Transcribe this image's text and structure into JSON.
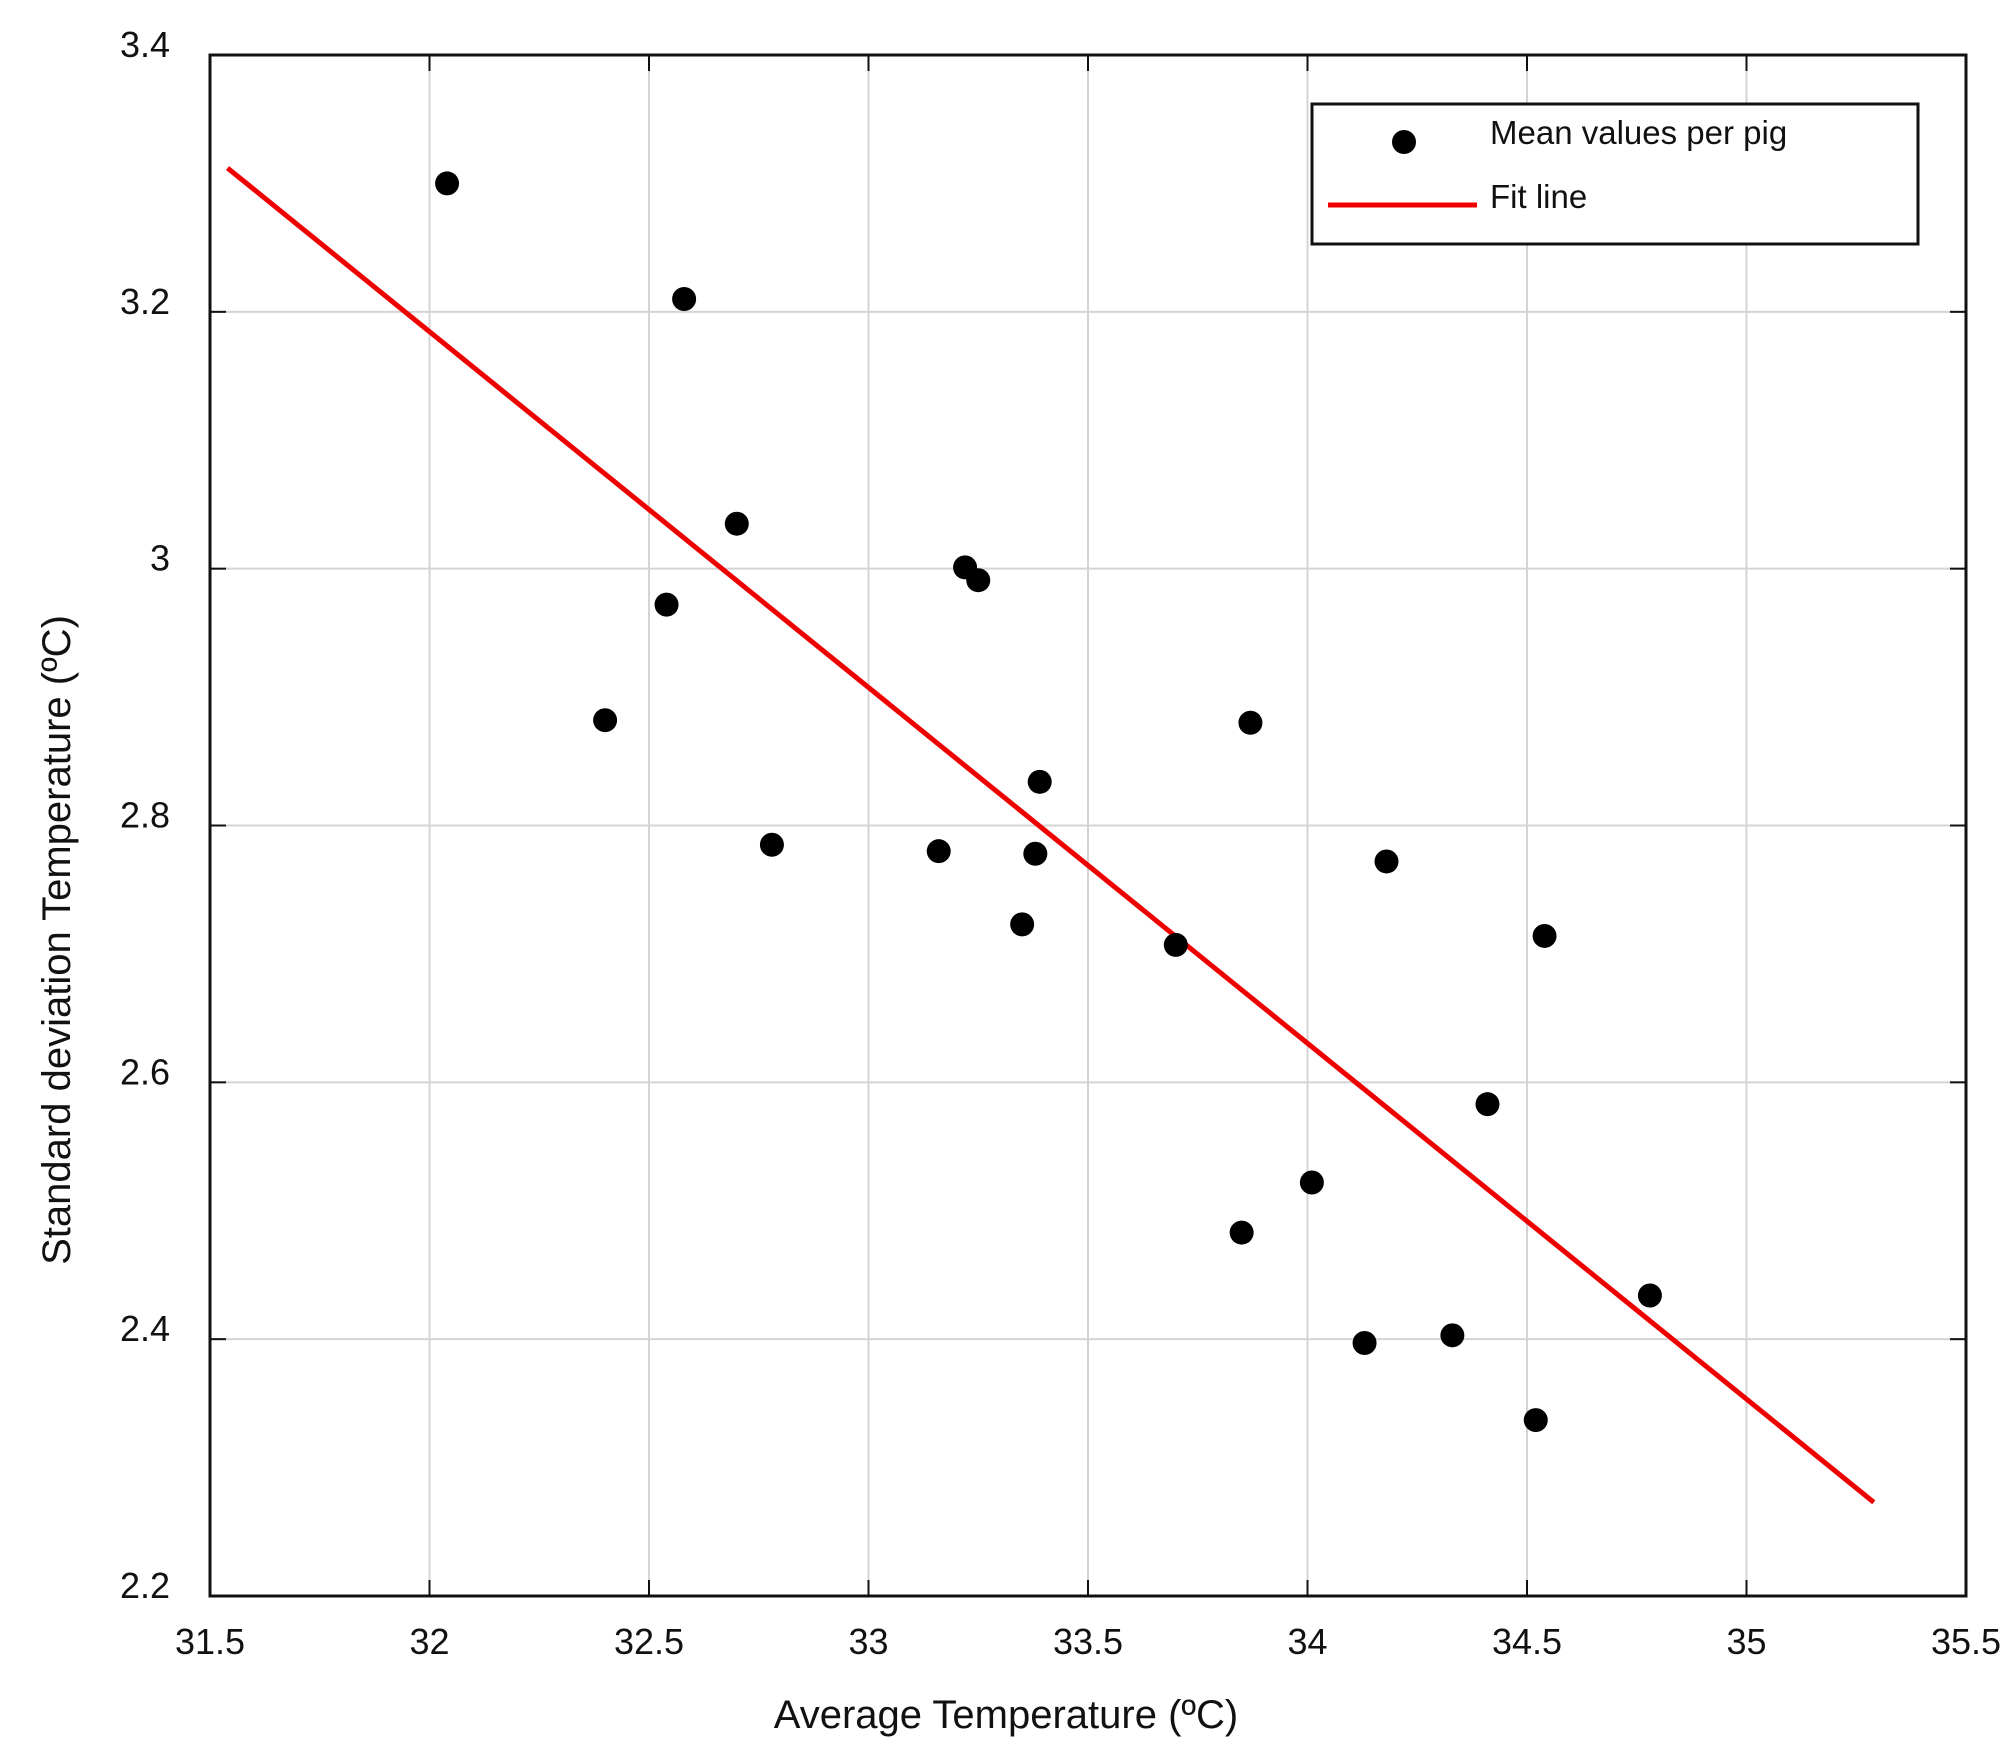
{
  "chart_data": {
    "type": "scatter",
    "title": "",
    "xlabel": "Average Temperature (ºC)",
    "ylabel": "Standard deviation  Temperature (ºC)",
    "xlim": [
      31.5,
      35.5
    ],
    "ylim": [
      2.2,
      3.4
    ],
    "grid": true,
    "legend_position": "top-right",
    "xticks": [
      31.5,
      32,
      32.5,
      33,
      33.5,
      34,
      34.5,
      35,
      35.5
    ],
    "xtick_labels": [
      "31.5",
      "32",
      "32.5",
      "33",
      "33.5",
      "34",
      "34.5",
      "35",
      "35.5"
    ],
    "yticks": [
      2.2,
      2.4,
      2.6,
      2.8,
      3.0,
      3.2,
      3.4
    ],
    "ytick_labels": [
      "2.2",
      "2.4",
      "2.6",
      "2.8",
      "3",
      "3.2",
      "3.4"
    ],
    "series": [
      {
        "name": "Mean values per pig",
        "kind": "scatter",
        "color": "#000000",
        "points": [
          {
            "x": 32.04,
            "y": 3.3
          },
          {
            "x": 32.58,
            "y": 3.21
          },
          {
            "x": 32.7,
            "y": 3.035
          },
          {
            "x": 32.54,
            "y": 2.972
          },
          {
            "x": 32.4,
            "y": 2.882
          },
          {
            "x": 32.78,
            "y": 2.785
          },
          {
            "x": 33.22,
            "y": 3.001
          },
          {
            "x": 33.25,
            "y": 2.991
          },
          {
            "x": 33.16,
            "y": 2.78
          },
          {
            "x": 33.39,
            "y": 2.834
          },
          {
            "x": 33.38,
            "y": 2.778
          },
          {
            "x": 33.35,
            "y": 2.723
          },
          {
            "x": 33.7,
            "y": 2.707
          },
          {
            "x": 33.87,
            "y": 2.88
          },
          {
            "x": 34.18,
            "y": 2.772
          },
          {
            "x": 34.54,
            "y": 2.714
          },
          {
            "x": 34.41,
            "y": 2.583
          },
          {
            "x": 34.01,
            "y": 2.522
          },
          {
            "x": 33.85,
            "y": 2.483
          },
          {
            "x": 34.13,
            "y": 2.397
          },
          {
            "x": 34.33,
            "y": 2.403
          },
          {
            "x": 34.52,
            "y": 2.337
          },
          {
            "x": 34.78,
            "y": 2.434
          }
        ]
      },
      {
        "name": "Fit line",
        "kind": "line",
        "color": "#ee0000",
        "points": [
          {
            "x": 31.54,
            "y": 3.312
          },
          {
            "x": 35.29,
            "y": 2.273
          }
        ]
      }
    ]
  }
}
